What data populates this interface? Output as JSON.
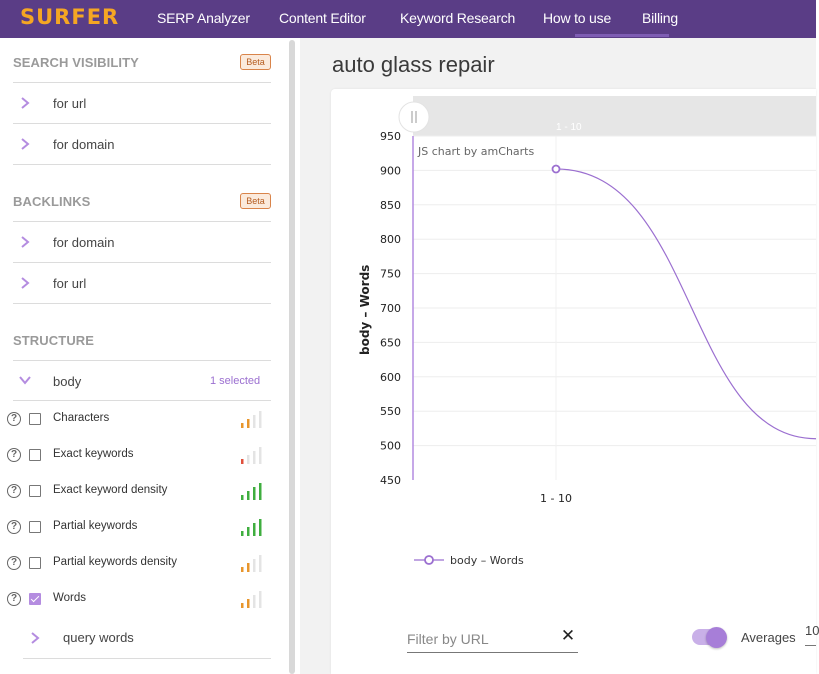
{
  "app": {
    "logo": "SURFER",
    "nav": [
      "SERP Analyzer",
      "Content Editor",
      "Keyword Research",
      "How to use",
      "Billing"
    ]
  },
  "sidebar": {
    "search_visibility": {
      "title": "SEARCH VISIBILITY",
      "badge": "Beta",
      "items": [
        "for url",
        "for domain"
      ]
    },
    "backlinks": {
      "title": "BACKLINKS",
      "badge": "Beta",
      "items": [
        "for domain",
        "for url"
      ]
    },
    "structure": {
      "title": "STRUCTURE",
      "group_label": "body",
      "selected_text": "1 selected",
      "metrics": [
        {
          "label": "Characters",
          "checked": false,
          "signal": "medium-orange"
        },
        {
          "label": "Exact keywords",
          "checked": false,
          "signal": "low-red"
        },
        {
          "label": "Exact keyword density",
          "checked": false,
          "signal": "high-green"
        },
        {
          "label": "Partial keywords",
          "checked": false,
          "signal": "high-green"
        },
        {
          "label": "Partial keywords density",
          "checked": false,
          "signal": "medium-orange"
        },
        {
          "label": "Words",
          "checked": true,
          "signal": "medium-orange"
        }
      ],
      "help_glyph": "?",
      "sub_item": "query words"
    }
  },
  "main": {
    "page_title": "auto glass repair",
    "filter_placeholder": "Filter by URL",
    "clear_glyph": "✕",
    "averages_label": "Averages",
    "averages_value": "10"
  },
  "chart_data": {
    "type": "line",
    "credit": "JS chart by amCharts",
    "scrollbar_label": "1 - 10",
    "ylabel": "body – Words",
    "xlabel": "",
    "ylim": [
      450,
      950
    ],
    "yticks": [
      950,
      900,
      850,
      800,
      750,
      700,
      650,
      600,
      550,
      500,
      450
    ],
    "categories": [
      "1 - 10"
    ],
    "series": [
      {
        "name": "body – Words",
        "color": "#9b6fd0",
        "points": [
          {
            "x": "1 - 10",
            "y": 902
          }
        ]
      }
    ],
    "trend_end_visible_y": 510,
    "legend_position": "bottom-left",
    "grid": true
  }
}
